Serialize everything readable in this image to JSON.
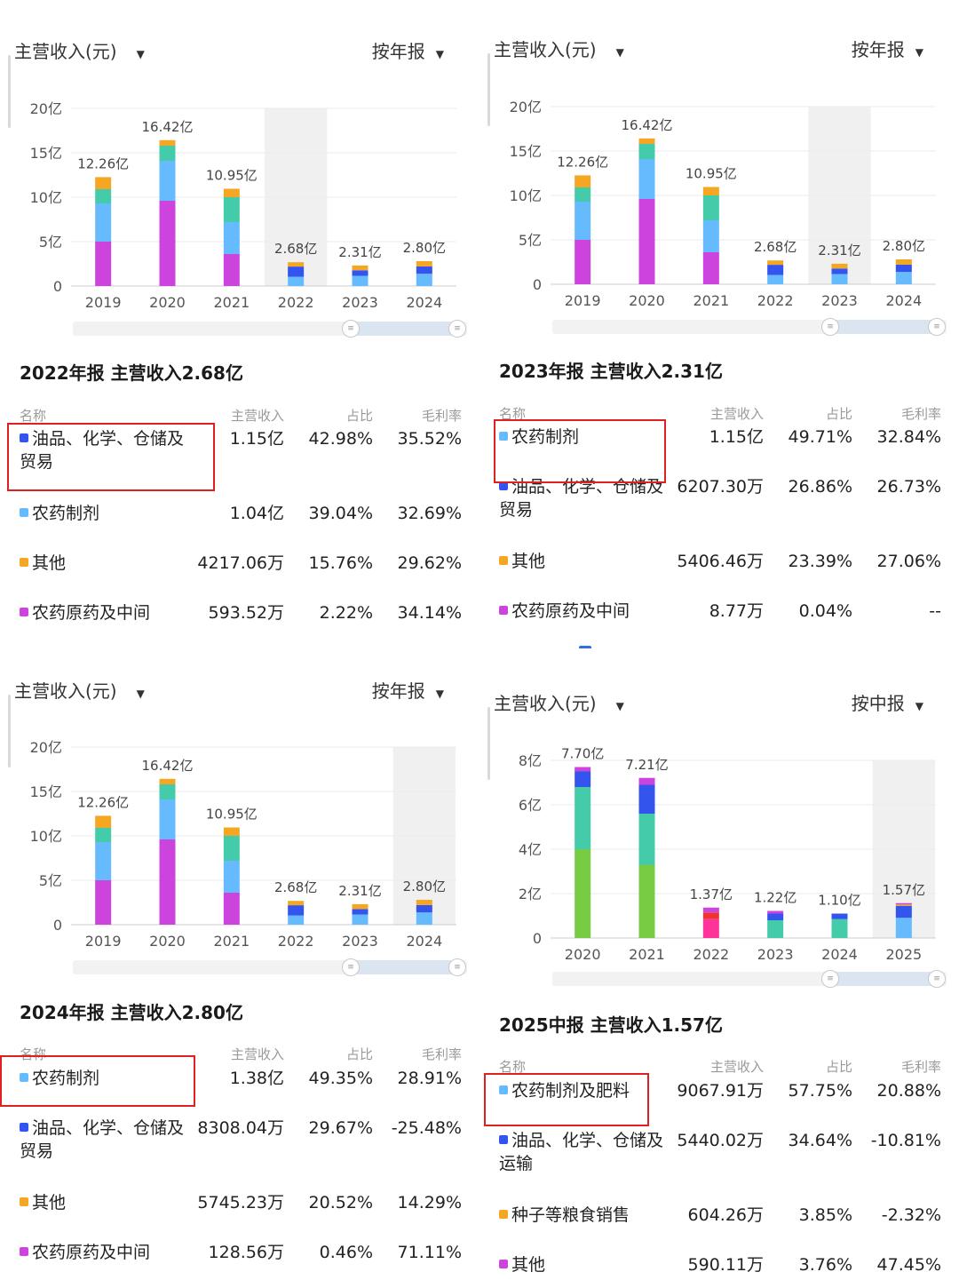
{
  "colors": {
    "purple": "#cc44dd",
    "light_blue": "#66bbff",
    "teal": "#44ccaa",
    "orange": "#f5a623",
    "blue": "#3355ee",
    "green": "#77cc44",
    "pink": "#ff3399",
    "red": "#ee3333",
    "highlight": "#e02020"
  },
  "panels": [
    {
      "metric_label": "主营收入(元)",
      "period_label": "按年报",
      "chart_data": {
        "type": "bar",
        "stacked": true,
        "categories": [
          "2019",
          "2020",
          "2021",
          "2022",
          "2023",
          "2024"
        ],
        "yticks": [
          "0",
          "5亿",
          "10亿",
          "15亿",
          "20亿"
        ],
        "ylim": [
          0,
          20
        ],
        "totals": [
          12.26,
          16.42,
          10.95,
          2.68,
          2.31,
          2.8
        ],
        "total_labels": [
          "12.26亿",
          "16.42亿",
          "10.95亿",
          "2.68亿",
          "2.31亿",
          "2.80亿"
        ],
        "highlight_index": 3,
        "segments": [
          [
            {
              "c": "purple",
              "v": 5.0
            },
            {
              "c": "light_blue",
              "v": 4.3
            },
            {
              "c": "teal",
              "v": 1.6
            },
            {
              "c": "orange",
              "v": 1.36
            }
          ],
          [
            {
              "c": "purple",
              "v": 9.6
            },
            {
              "c": "light_blue",
              "v": 4.5
            },
            {
              "c": "teal",
              "v": 1.7
            },
            {
              "c": "orange",
              "v": 0.62
            }
          ],
          [
            {
              "c": "purple",
              "v": 3.6
            },
            {
              "c": "light_blue",
              "v": 3.6
            },
            {
              "c": "teal",
              "v": 2.8
            },
            {
              "c": "orange",
              "v": 0.95
            }
          ],
          [
            {
              "c": "light_blue",
              "v": 1.04
            },
            {
              "c": "blue",
              "v": 1.15
            },
            {
              "c": "orange",
              "v": 0.49
            }
          ],
          [
            {
              "c": "light_blue",
              "v": 1.15
            },
            {
              "c": "blue",
              "v": 0.62
            },
            {
              "c": "orange",
              "v": 0.54
            }
          ],
          [
            {
              "c": "light_blue",
              "v": 1.38
            },
            {
              "c": "blue",
              "v": 0.83
            },
            {
              "c": "orange",
              "v": 0.59
            }
          ]
        ]
      },
      "report": {
        "title": "2022年报 主营收入2.68亿",
        "headers": {
          "name": "名称",
          "revenue": "主营收入",
          "share": "占比",
          "margin": "毛利率"
        },
        "rows": [
          {
            "color": "blue",
            "name": "油品、化学、仓储及贸易",
            "revenue": "1.15亿",
            "share": "42.98%",
            "margin": "35.52%"
          },
          {
            "color": "light_blue",
            "name": "农药制剂",
            "revenue": "1.04亿",
            "share": "39.04%",
            "margin": "32.69%"
          },
          {
            "color": "orange",
            "name": "其他",
            "revenue": "4217.06万",
            "share": "15.76%",
            "margin": "29.62%"
          },
          {
            "color": "purple",
            "name": "农药原药及中间",
            "revenue": "593.52万",
            "share": "2.22%",
            "margin": "34.14%"
          }
        ]
      }
    },
    {
      "metric_label": "主营收入(元)",
      "period_label": "按年报",
      "chart_data": {
        "type": "bar",
        "stacked": true,
        "categories": [
          "2019",
          "2020",
          "2021",
          "2022",
          "2023",
          "2024"
        ],
        "yticks": [
          "0",
          "5亿",
          "10亿",
          "15亿",
          "20亿"
        ],
        "ylim": [
          0,
          20
        ],
        "totals": [
          12.26,
          16.42,
          10.95,
          2.68,
          2.31,
          2.8
        ],
        "total_labels": [
          "12.26亿",
          "16.42亿",
          "10.95亿",
          "2.68亿",
          "2.31亿",
          "2.80亿"
        ],
        "highlight_index": 4,
        "segments": [
          [
            {
              "c": "purple",
              "v": 5.0
            },
            {
              "c": "light_blue",
              "v": 4.3
            },
            {
              "c": "teal",
              "v": 1.6
            },
            {
              "c": "orange",
              "v": 1.36
            }
          ],
          [
            {
              "c": "purple",
              "v": 9.6
            },
            {
              "c": "light_blue",
              "v": 4.5
            },
            {
              "c": "teal",
              "v": 1.7
            },
            {
              "c": "orange",
              "v": 0.62
            }
          ],
          [
            {
              "c": "purple",
              "v": 3.6
            },
            {
              "c": "light_blue",
              "v": 3.6
            },
            {
              "c": "teal",
              "v": 2.8
            },
            {
              "c": "orange",
              "v": 0.95
            }
          ],
          [
            {
              "c": "light_blue",
              "v": 1.04
            },
            {
              "c": "blue",
              "v": 1.15
            },
            {
              "c": "orange",
              "v": 0.49
            }
          ],
          [
            {
              "c": "light_blue",
              "v": 1.15
            },
            {
              "c": "blue",
              "v": 0.62
            },
            {
              "c": "orange",
              "v": 0.54
            }
          ],
          [
            {
              "c": "light_blue",
              "v": 1.38
            },
            {
              "c": "blue",
              "v": 0.83
            },
            {
              "c": "orange",
              "v": 0.59
            }
          ]
        ]
      },
      "report": {
        "title": "2023年报 主营收入2.31亿",
        "headers": {
          "name": "名称",
          "revenue": "主营收入",
          "share": "占比",
          "margin": "毛利率"
        },
        "rows": [
          {
            "color": "light_blue",
            "name": "农药制剂",
            "revenue": "1.15亿",
            "share": "49.71%",
            "margin": "32.84%"
          },
          {
            "color": "blue",
            "name": "油品、化学、仓储及贸易",
            "revenue": "6207.30万",
            "share": "26.86%",
            "margin": "26.73%"
          },
          {
            "color": "orange",
            "name": "其他",
            "revenue": "5406.46万",
            "share": "23.39%",
            "margin": "27.06%"
          },
          {
            "color": "purple",
            "name": "农药原药及中间",
            "revenue": "8.77万",
            "share": "0.04%",
            "margin": "--"
          }
        ]
      }
    },
    {
      "metric_label": "主营收入(元)",
      "period_label": "按年报",
      "chart_data": {
        "type": "bar",
        "stacked": true,
        "categories": [
          "2019",
          "2020",
          "2021",
          "2022",
          "2023",
          "2024"
        ],
        "yticks": [
          "0",
          "5亿",
          "10亿",
          "15亿",
          "20亿"
        ],
        "ylim": [
          0,
          20
        ],
        "totals": [
          12.26,
          16.42,
          10.95,
          2.68,
          2.31,
          2.8
        ],
        "total_labels": [
          "12.26亿",
          "16.42亿",
          "10.95亿",
          "2.68亿",
          "2.31亿",
          "2.80亿"
        ],
        "highlight_index": 5,
        "segments": [
          [
            {
              "c": "purple",
              "v": 5.0
            },
            {
              "c": "light_blue",
              "v": 4.3
            },
            {
              "c": "teal",
              "v": 1.6
            },
            {
              "c": "orange",
              "v": 1.36
            }
          ],
          [
            {
              "c": "purple",
              "v": 9.6
            },
            {
              "c": "light_blue",
              "v": 4.5
            },
            {
              "c": "teal",
              "v": 1.7
            },
            {
              "c": "orange",
              "v": 0.62
            }
          ],
          [
            {
              "c": "purple",
              "v": 3.6
            },
            {
              "c": "light_blue",
              "v": 3.6
            },
            {
              "c": "teal",
              "v": 2.8
            },
            {
              "c": "orange",
              "v": 0.95
            }
          ],
          [
            {
              "c": "light_blue",
              "v": 1.04
            },
            {
              "c": "blue",
              "v": 1.15
            },
            {
              "c": "orange",
              "v": 0.49
            }
          ],
          [
            {
              "c": "light_blue",
              "v": 1.15
            },
            {
              "c": "blue",
              "v": 0.62
            },
            {
              "c": "orange",
              "v": 0.54
            }
          ],
          [
            {
              "c": "light_blue",
              "v": 1.38
            },
            {
              "c": "blue",
              "v": 0.83
            },
            {
              "c": "orange",
              "v": 0.59
            }
          ]
        ]
      },
      "report": {
        "title": "2024年报 主营收入2.80亿",
        "headers": {
          "name": "名称",
          "revenue": "主营收入",
          "share": "占比",
          "margin": "毛利率"
        },
        "rows": [
          {
            "color": "light_blue",
            "name": "农药制剂",
            "revenue": "1.38亿",
            "share": "49.35%",
            "margin": "28.91%"
          },
          {
            "color": "blue",
            "name": "油品、化学、仓储及贸易",
            "revenue": "8308.04万",
            "share": "29.67%",
            "margin": "-25.48%"
          },
          {
            "color": "orange",
            "name": "其他",
            "revenue": "5745.23万",
            "share": "20.52%",
            "margin": "14.29%"
          },
          {
            "color": "purple",
            "name": "农药原药及中间",
            "revenue": "128.56万",
            "share": "0.46%",
            "margin": "71.11%"
          }
        ]
      }
    },
    {
      "metric_label": "主营收入(元)",
      "period_label": "按中报",
      "chart_data": {
        "type": "bar",
        "stacked": true,
        "categories": [
          "2020",
          "2021",
          "2022",
          "2023",
          "2024",
          "2025"
        ],
        "yticks": [
          "0",
          "2亿",
          "4亿",
          "6亿",
          "8亿"
        ],
        "ylim": [
          0,
          8
        ],
        "totals": [
          7.7,
          7.21,
          1.37,
          1.22,
          1.1,
          1.57
        ],
        "total_labels": [
          "7.70亿",
          "7.21亿",
          "1.37亿",
          "1.22亿",
          "1.10亿",
          "1.57亿"
        ],
        "highlight_index": 5,
        "segments": [
          [
            {
              "c": "green",
              "v": 4.0
            },
            {
              "c": "teal",
              "v": 2.8
            },
            {
              "c": "blue",
              "v": 0.7
            },
            {
              "c": "purple",
              "v": 0.2
            }
          ],
          [
            {
              "c": "green",
              "v": 3.3
            },
            {
              "c": "teal",
              "v": 2.3
            },
            {
              "c": "blue",
              "v": 1.3
            },
            {
              "c": "purple",
              "v": 0.31
            }
          ],
          [
            {
              "c": "pink",
              "v": 0.85
            },
            {
              "c": "red",
              "v": 0.3
            },
            {
              "c": "purple",
              "v": 0.22
            }
          ],
          [
            {
              "c": "teal",
              "v": 0.8
            },
            {
              "c": "blue",
              "v": 0.3
            },
            {
              "c": "purple",
              "v": 0.12
            }
          ],
          [
            {
              "c": "teal",
              "v": 0.85
            },
            {
              "c": "blue",
              "v": 0.25
            }
          ],
          [
            {
              "c": "light_blue",
              "v": 0.91
            },
            {
              "c": "blue",
              "v": 0.54
            },
            {
              "c": "orange",
              "v": 0.06
            },
            {
              "c": "purple",
              "v": 0.06
            }
          ]
        ]
      },
      "report": {
        "title": "2025中报 主营收入1.57亿",
        "headers": {
          "name": "名称",
          "revenue": "主营收入",
          "share": "占比",
          "margin": "毛利率"
        },
        "rows": [
          {
            "color": "light_blue",
            "name": "农药制剂及肥料",
            "revenue": "9067.91万",
            "share": "57.75%",
            "margin": "20.88%"
          },
          {
            "color": "blue",
            "name": "油品、化学、仓储及运输",
            "revenue": "5440.02万",
            "share": "34.64%",
            "margin": "-10.81%"
          },
          {
            "color": "orange",
            "name": "种子等粮食销售",
            "revenue": "604.26万",
            "share": "3.85%",
            "margin": "-2.32%"
          },
          {
            "color": "purple",
            "name": "其他",
            "revenue": "590.11万",
            "share": "3.76%",
            "margin": "47.45%"
          }
        ]
      }
    }
  ]
}
